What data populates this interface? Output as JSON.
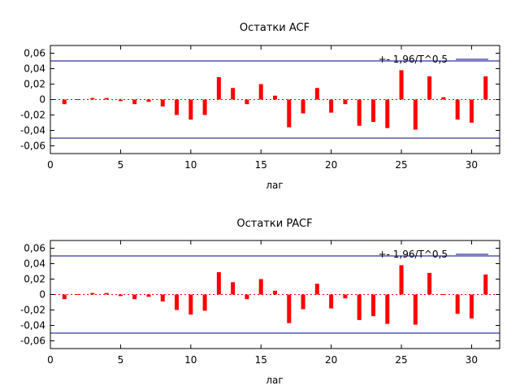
{
  "chart_data": [
    {
      "type": "bar",
      "title": "Остатки ACF",
      "xlabel": "лаг",
      "ylabel": "",
      "xlim": [
        0,
        32
      ],
      "ylim": [
        -0.07,
        0.07
      ],
      "xticks": [
        "0",
        "5",
        "10",
        "15",
        "20",
        "25",
        "30"
      ],
      "yticks": [
        "0,06",
        "0,04",
        "0,02",
        "0",
        "-0,02",
        "-0,04",
        "-0,06"
      ],
      "legend": "+- 1,96/T^0,5",
      "legend_position": "top-right",
      "bound": 0.05,
      "bar_color": "#ff0000",
      "bound_color": "#00008b",
      "grid": false,
      "lags": [
        1,
        2,
        3,
        4,
        5,
        6,
        7,
        8,
        9,
        10,
        11,
        12,
        13,
        14,
        15,
        16,
        17,
        18,
        19,
        20,
        21,
        22,
        23,
        24,
        25,
        26,
        27,
        28,
        29,
        30,
        31
      ],
      "values": [
        -0.006,
        -0.001,
        0.002,
        0.002,
        -0.002,
        -0.006,
        -0.003,
        -0.009,
        -0.02,
        -0.026,
        -0.02,
        0.029,
        0.015,
        -0.006,
        0.02,
        0.005,
        -0.036,
        -0.018,
        0.015,
        -0.017,
        -0.006,
        -0.034,
        -0.029,
        -0.037,
        0.038,
        -0.039,
        0.03,
        0.003,
        -0.026,
        -0.03,
        0.03
      ]
    },
    {
      "type": "bar",
      "title": "Остатки PACF",
      "xlabel": "лаг",
      "ylabel": "",
      "xlim": [
        0,
        32
      ],
      "ylim": [
        -0.07,
        0.07
      ],
      "xticks": [
        "0",
        "5",
        "10",
        "15",
        "20",
        "25",
        "30"
      ],
      "yticks": [
        "0,06",
        "0,04",
        "0,02",
        "0",
        "-0,02",
        "-0,04",
        "-0,06"
      ],
      "legend": "+- 1,96/T^0,5",
      "legend_position": "top-right",
      "bound": 0.05,
      "bar_color": "#ff0000",
      "bound_color": "#00008b",
      "grid": false,
      "lags": [
        1,
        2,
        3,
        4,
        5,
        6,
        7,
        8,
        9,
        10,
        11,
        12,
        13,
        14,
        15,
        16,
        17,
        18,
        19,
        20,
        21,
        22,
        23,
        24,
        25,
        26,
        27,
        28,
        29,
        30,
        31
      ],
      "values": [
        -0.006,
        -0.001,
        0.002,
        0.002,
        -0.002,
        -0.006,
        -0.003,
        -0.009,
        -0.02,
        -0.026,
        -0.021,
        0.029,
        0.016,
        -0.006,
        0.02,
        0.005,
        -0.037,
        -0.019,
        0.014,
        -0.018,
        -0.005,
        -0.033,
        -0.028,
        -0.038,
        0.038,
        -0.039,
        0.028,
        0.0,
        -0.025,
        -0.031,
        0.026
      ]
    }
  ]
}
